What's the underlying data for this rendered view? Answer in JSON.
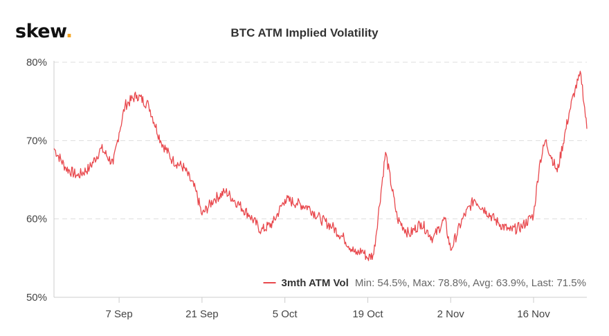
{
  "logo": {
    "text": "skew",
    "dot": "."
  },
  "chart_data": {
    "type": "line",
    "title": "BTC ATM Implied Volatility",
    "xlabel": "",
    "ylabel": "",
    "x_tick_labels": [
      "7 Sep",
      "21 Sep",
      "5 Oct",
      "19 Oct",
      "2 Nov",
      "16 Nov"
    ],
    "y_tick_labels": [
      "50%",
      "60%",
      "70%",
      "80%"
    ],
    "y_ticks": [
      50,
      60,
      70,
      80
    ],
    "ylim": [
      50,
      80
    ],
    "grid": true,
    "legend_placement": "bottom-right",
    "series": [
      {
        "name": "3mth ATM Vol",
        "color": "#e8474c",
        "stats": "Min: 54.5%, Max: 78.8%, Avg: 63.9%, Last: 71.5%",
        "x": [
          "27 Aug",
          "29 Aug",
          "31 Aug",
          "2 Sep",
          "4 Sep",
          "6 Sep",
          "7 Sep",
          "8 Sep",
          "10 Sep",
          "12 Sep",
          "14 Sep",
          "16 Sep",
          "18 Sep",
          "20 Sep",
          "21 Sep",
          "23 Sep",
          "25 Sep",
          "27 Sep",
          "29 Sep",
          "1 Oct",
          "3 Oct",
          "5 Oct",
          "7 Oct",
          "9 Oct",
          "11 Oct",
          "13 Oct",
          "15 Oct",
          "17 Oct",
          "18 Oct",
          "19 Oct",
          "20 Oct",
          "22 Oct",
          "24 Oct",
          "26 Oct",
          "28 Oct",
          "30 Oct",
          "1 Nov",
          "2 Nov",
          "4 Nov",
          "6 Nov",
          "8 Nov",
          "10 Nov",
          "12 Nov",
          "14 Nov",
          "16 Nov",
          "17 Nov",
          "18 Nov",
          "20 Nov",
          "22 Nov",
          "23 Nov",
          "24 Nov",
          "25 Nov"
        ],
        "values": [
          69.0,
          66.5,
          65.5,
          66.5,
          69.0,
          67.0,
          71.0,
          74.5,
          75.8,
          74.5,
          70.0,
          67.5,
          66.5,
          63.5,
          60.5,
          62.5,
          63.5,
          62.0,
          60.5,
          58.5,
          59.5,
          62.5,
          62.0,
          61.5,
          60.0,
          59.0,
          57.5,
          55.5,
          56.0,
          55.0,
          55.5,
          68.5,
          60.0,
          58.0,
          59.5,
          57.5,
          60.0,
          56.0,
          60.0,
          62.5,
          61.0,
          59.5,
          58.5,
          59.0,
          60.5,
          67.0,
          70.0,
          66.0,
          73.5,
          76.5,
          78.5,
          71.5
        ]
      }
    ]
  }
}
